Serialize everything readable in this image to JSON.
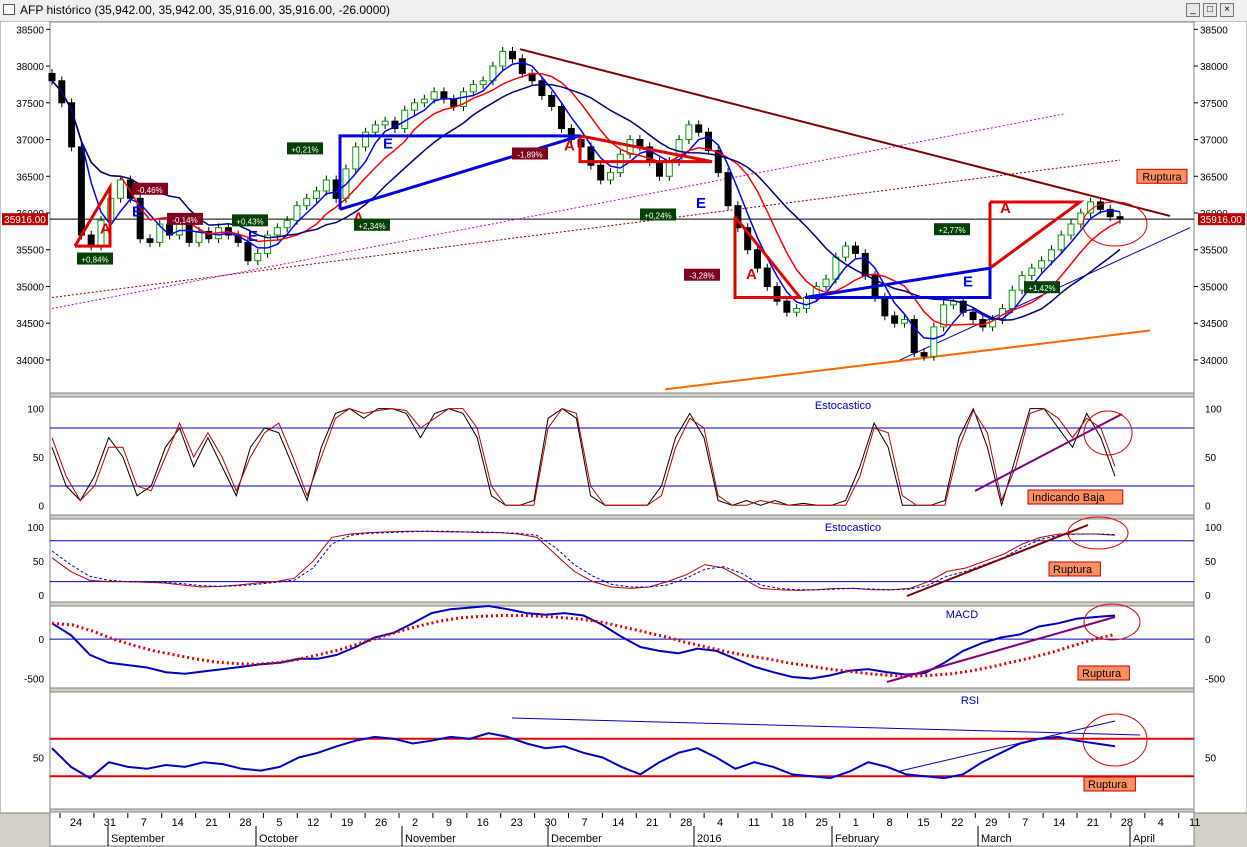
{
  "window": {
    "title": "AFP histórico (35,942.00, 35,942.00, 35,916.00, 35,916.00, -26.0000)",
    "minimize_glyph": "_",
    "maximize_glyph": "□",
    "close_glyph": "×"
  },
  "price_badge": "35916.00",
  "chart_data": [
    {
      "type": "candlestick",
      "title": "",
      "price_axis_ticks": [
        34000,
        34500,
        35000,
        35500,
        36000,
        36500,
        37000,
        37500,
        38000,
        38500
      ],
      "ylim": [
        33550,
        38600
      ],
      "last_price": 35916.0,
      "x_tick_labels": [
        "24",
        "31",
        "7",
        "14",
        "21",
        "28",
        "5",
        "12",
        "19",
        "26",
        "2",
        "9",
        "16",
        "23",
        "30",
        "7",
        "14",
        "21",
        "28",
        "4",
        "11",
        "18",
        "25",
        "1",
        "8",
        "15",
        "22",
        "29",
        "7",
        "14",
        "21",
        "28",
        "4",
        "11"
      ],
      "month_labels": [
        "September",
        "October",
        "November",
        "December",
        "2016",
        "February",
        "March",
        "April"
      ],
      "close_series": [
        37800,
        37500,
        36900,
        35700,
        35550,
        35900,
        36200,
        36450,
        36200,
        35650,
        35600,
        35850,
        35700,
        35900,
        35600,
        35750,
        35650,
        35800,
        35700,
        35600,
        35350,
        35450,
        35700,
        35800,
        35900,
        36100,
        36200,
        36300,
        36450,
        36200,
        36600,
        36900,
        37100,
        37200,
        37250,
        37150,
        37400,
        37500,
        37550,
        37650,
        37550,
        37450,
        37650,
        37750,
        37800,
        38000,
        38200,
        38100,
        37900,
        37800,
        37600,
        37450,
        37150,
        37000,
        36900,
        36650,
        36450,
        36550,
        36800,
        37000,
        36900,
        36700,
        36500,
        36700,
        37000,
        37200,
        37100,
        36850,
        36550,
        36100,
        35800,
        35500,
        35250,
        35000,
        34800,
        34650,
        34700,
        34850,
        35000,
        35100,
        35400,
        35550,
        35450,
        35150,
        34850,
        34600,
        34500,
        34550,
        34100,
        34050,
        34450,
        34750,
        34800,
        34650,
        34550,
        34450,
        34550,
        34700,
        34950,
        35150,
        35250,
        35350,
        35500,
        35700,
        35850,
        36000,
        36150,
        36050,
        35950,
        35916
      ],
      "series": [
        {
          "name": "",
          "role": "moving average (fast)",
          "color": "#0000ff"
        },
        {
          "name": "",
          "role": "moving average (medium)",
          "color": "#ff0000"
        },
        {
          "name": "",
          "role": "moving average (slow)",
          "color": "#000080"
        }
      ],
      "annotations": [
        {
          "text": "A",
          "color": "#e00000"
        },
        {
          "text": "E",
          "color": "#0000e0"
        },
        {
          "text": "Ruptura",
          "color": "#c00000"
        }
      ],
      "percent_labels": [
        {
          "text": "+0,84%",
          "sign": "up"
        },
        {
          "text": "-0,46%",
          "sign": "down"
        },
        {
          "text": "-0,14%",
          "sign": "down"
        },
        {
          "text": "+0,43%",
          "sign": "up"
        },
        {
          "text": "+0,21%",
          "sign": "up"
        },
        {
          "text": "+2,34%",
          "sign": "up"
        },
        {
          "text": "-1,89%",
          "sign": "down"
        },
        {
          "text": "+0,24%",
          "sign": "up"
        },
        {
          "text": "-3,28%",
          "sign": "down"
        },
        {
          "text": "+2,77%",
          "sign": "up"
        },
        {
          "text": "+1,42%",
          "sign": "up"
        }
      ]
    },
    {
      "type": "line",
      "title": "Estocastico",
      "yticks": [
        0,
        50,
        100
      ],
      "ylim": [
        -10,
        112
      ],
      "reference_lines": [
        20,
        80
      ],
      "annotation": "Indicando Baja",
      "series": [
        {
          "name": "",
          "color": "#000000",
          "values": [
            60,
            20,
            5,
            30,
            70,
            50,
            10,
            20,
            60,
            80,
            40,
            70,
            40,
            10,
            60,
            80,
            75,
            40,
            5,
            60,
            95,
            100,
            90,
            100,
            100,
            95,
            70,
            95,
            100,
            95,
            70,
            10,
            0,
            0,
            5,
            90,
            100,
            90,
            10,
            0,
            0,
            0,
            0,
            20,
            70,
            95,
            70,
            5,
            0,
            5,
            0,
            5,
            0,
            2,
            0,
            0,
            5,
            40,
            85,
            60,
            0,
            0,
            0,
            5,
            70,
            100,
            60,
            0,
            50,
            100,
            100,
            80,
            60,
            95,
            70,
            30
          ]
        },
        {
          "name": "",
          "color": "#c00000",
          "values": [
            70,
            30,
            5,
            20,
            60,
            60,
            20,
            15,
            50,
            85,
            50,
            75,
            50,
            15,
            50,
            75,
            85,
            50,
            10,
            50,
            90,
            100,
            95,
            98,
            100,
            98,
            80,
            90,
            100,
            100,
            80,
            20,
            0,
            0,
            0,
            80,
            100,
            95,
            20,
            0,
            0,
            0,
            0,
            10,
            60,
            90,
            80,
            10,
            0,
            0,
            5,
            2,
            0,
            0,
            0,
            0,
            0,
            30,
            80,
            75,
            10,
            0,
            0,
            0,
            60,
            98,
            75,
            5,
            40,
            95,
            100,
            90,
            70,
            90,
            80,
            40
          ]
        }
      ]
    },
    {
      "type": "line",
      "title": "Estocastico",
      "yticks": [
        0,
        50,
        100
      ],
      "ylim": [
        -10,
        112
      ],
      "reference_lines": [
        20,
        80
      ],
      "annotation": "Ruptura",
      "series": [
        {
          "name": "",
          "color": "#c00000",
          "values": [
            55,
            35,
            22,
            20,
            20,
            19,
            18,
            15,
            12,
            13,
            15,
            18,
            20,
            25,
            50,
            85,
            90,
            92,
            93,
            94,
            94,
            93,
            93,
            92,
            92,
            90,
            85,
            60,
            35,
            20,
            12,
            10,
            12,
            20,
            30,
            45,
            40,
            25,
            10,
            8,
            7,
            8,
            10,
            10,
            8,
            8,
            10,
            20,
            35,
            40,
            50,
            60,
            75,
            85,
            90,
            90,
            90,
            88
          ]
        },
        {
          "name": "",
          "color": "#0000c0",
          "values": [
            65,
            45,
            28,
            22,
            20,
            20,
            19,
            17,
            14,
            13,
            14,
            16,
            19,
            22,
            40,
            75,
            88,
            91,
            92,
            93,
            94,
            94,
            93,
            93,
            92,
            91,
            88,
            70,
            45,
            28,
            16,
            12,
            12,
            15,
            25,
            38,
            42,
            32,
            15,
            10,
            8,
            8,
            9,
            10,
            9,
            8,
            9,
            15,
            28,
            35,
            45,
            55,
            70,
            82,
            88,
            90,
            90,
            89
          ]
        }
      ]
    },
    {
      "type": "line",
      "title": "MACD",
      "yticks": [
        -500,
        0
      ],
      "ylim": [
        -620,
        420
      ],
      "reference_lines": [
        0
      ],
      "annotation": "Ruptura",
      "series": [
        {
          "name": "",
          "color": "#0000c0",
          "values": [
            200,
            50,
            -200,
            -300,
            -330,
            -360,
            -420,
            -440,
            -410,
            -380,
            -350,
            -320,
            -300,
            -250,
            -250,
            -200,
            -100,
            20,
            80,
            200,
            330,
            380,
            400,
            420,
            380,
            330,
            310,
            330,
            300,
            180,
            30,
            -100,
            -150,
            -180,
            -120,
            -150,
            -250,
            -350,
            -420,
            -480,
            -500,
            -460,
            -400,
            -380,
            -420,
            -450,
            -430,
            -300,
            -150,
            -50,
            20,
            60,
            160,
            200,
            260,
            280,
            300
          ]
        },
        {
          "name": "",
          "color": "#e00000",
          "values": [
            200,
            180,
            100,
            0,
            -80,
            -150,
            -200,
            -250,
            -290,
            -310,
            -320,
            -300,
            -260,
            -200,
            -140,
            -60,
            20,
            100,
            170,
            230,
            270,
            290,
            300,
            300,
            290,
            270,
            250,
            210,
            150,
            90,
            30,
            -40,
            -100,
            -160,
            -210,
            -250,
            -300,
            -340,
            -380,
            -410,
            -440,
            -460,
            -470,
            -460,
            -440,
            -400,
            -350,
            -290,
            -230,
            -160,
            -80,
            0,
            60
          ]
        }
      ]
    },
    {
      "type": "line",
      "title": "RSI",
      "yticks": [
        50
      ],
      "ylim": [
        -5,
        120
      ],
      "reference_lines": [
        30,
        70
      ],
      "annotation": "Ruptura",
      "series": [
        {
          "name": "",
          "color": "#0000c0",
          "values": [
            60,
            40,
            28,
            45,
            40,
            38,
            42,
            40,
            45,
            43,
            38,
            36,
            40,
            50,
            55,
            62,
            68,
            72,
            70,
            65,
            68,
            72,
            70,
            76,
            72,
            65,
            60,
            62,
            55,
            50,
            40,
            32,
            45,
            55,
            60,
            50,
            38,
            45,
            40,
            32,
            30,
            28,
            35,
            45,
            40,
            32,
            30,
            28,
            32,
            45,
            55,
            65,
            70,
            72,
            68,
            65,
            62
          ]
        }
      ]
    }
  ]
}
